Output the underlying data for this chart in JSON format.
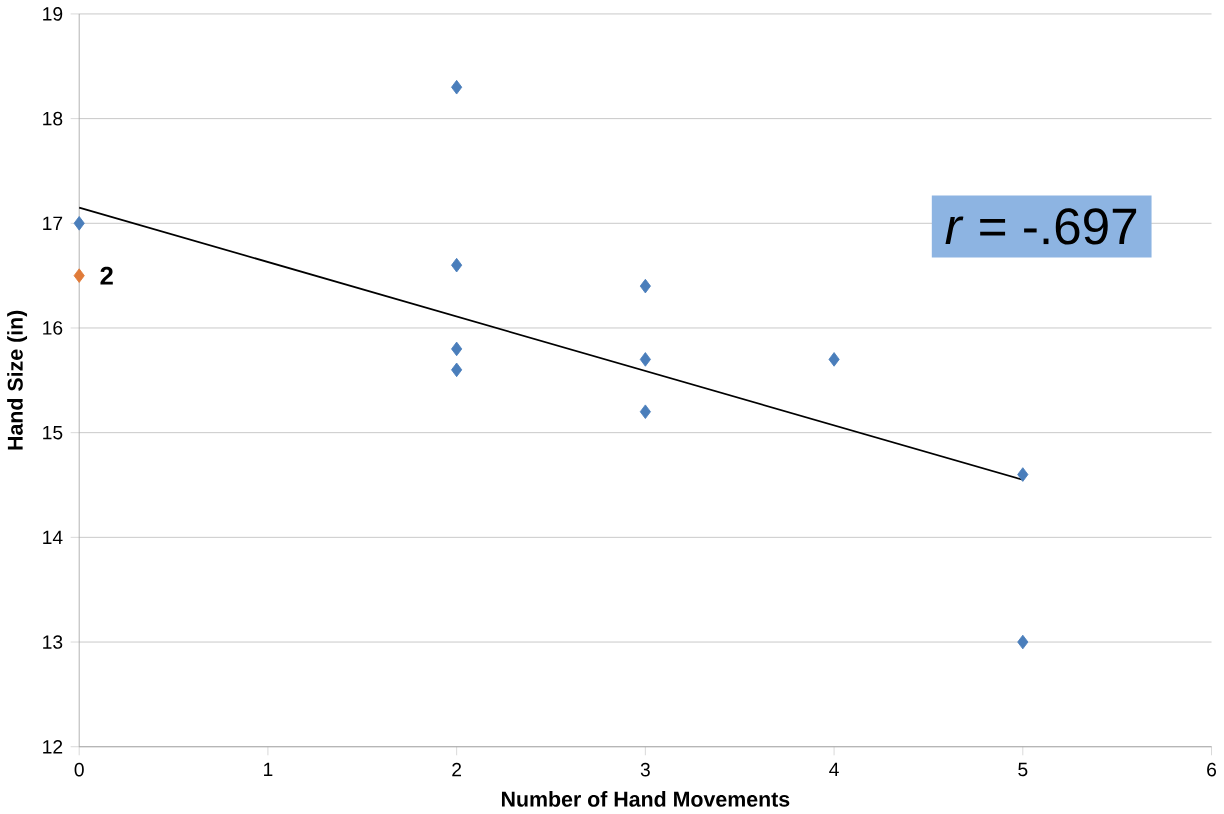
{
  "chart_data": {
    "type": "scatter",
    "xlabel": "Number of Hand Movements",
    "ylabel": "Hand Size (in)",
    "xlim": [
      0,
      6
    ],
    "xticks": [
      0,
      1,
      2,
      3,
      4,
      5,
      6
    ],
    "ylim": [
      12,
      19
    ],
    "yticks": [
      12,
      13,
      14,
      15,
      16,
      17,
      18,
      19
    ],
    "grid": "y",
    "series": [
      {
        "marker": "diamond",
        "x": [
          0,
          0,
          2,
          2,
          2,
          2,
          3,
          3,
          3,
          4,
          5,
          5
        ],
        "values": [
          17,
          16.5,
          18.3,
          16.6,
          15.8,
          15.6,
          16.4,
          15.7,
          15.2,
          15.7,
          14.6,
          13
        ],
        "colors": [
          "#4a7ebb",
          "#e07b39",
          "#4a7ebb",
          "#4a7ebb",
          "#4a7ebb",
          "#4a7ebb",
          "#4a7ebb",
          "#4a7ebb",
          "#4a7ebb",
          "#4a7ebb",
          "#4a7ebb",
          "#4a7ebb"
        ]
      },
      {
        "type": "line",
        "marker": "none",
        "x": [
          0,
          5
        ],
        "values": [
          17.15,
          14.55
        ],
        "color": "#000000"
      }
    ],
    "annotations": [
      {
        "text": "2",
        "x": 0,
        "y": 16.5
      },
      "*r* = -.697"
    ]
  }
}
